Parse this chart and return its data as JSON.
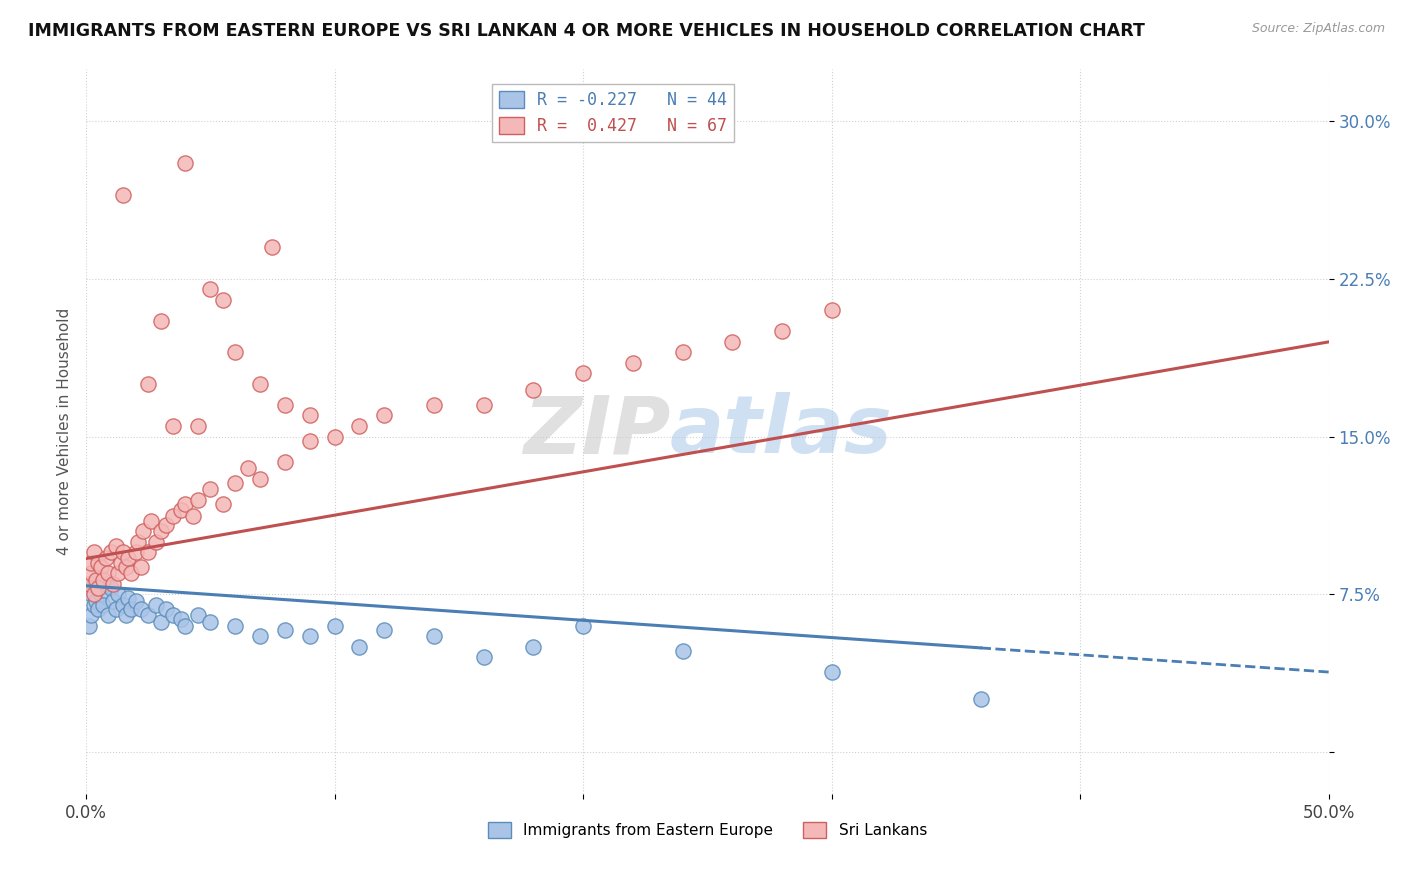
{
  "title": "IMMIGRANTS FROM EASTERN EUROPE VS SRI LANKAN 4 OR MORE VEHICLES IN HOUSEHOLD CORRELATION CHART",
  "source_text": "Source: ZipAtlas.com",
  "ylabel": "4 or more Vehicles in Household",
  "xlim": [
    0.0,
    0.5
  ],
  "ylim": [
    -0.02,
    0.325
  ],
  "xticks": [
    0.0,
    0.1,
    0.2,
    0.3,
    0.4,
    0.5
  ],
  "xticklabels": [
    "0.0%",
    "",
    "",
    "",
    "",
    "50.0%"
  ],
  "yticks": [
    0.0,
    0.075,
    0.15,
    0.225,
    0.3
  ],
  "yticklabels": [
    "",
    "7.5%",
    "15.0%",
    "22.5%",
    "30.0%"
  ],
  "legend_entries": [
    {
      "label": "R = -0.227   N = 44",
      "color": "#6fa8dc"
    },
    {
      "label": "R =  0.427   N = 67",
      "color": "#ea9999"
    }
  ],
  "watermark": "ZIPAtlas",
  "blue_color": "#aac4e8",
  "pink_color": "#f4b8b8",
  "blue_edge_color": "#5b8db8",
  "pink_edge_color": "#d06060",
  "blue_line_color": "#4a7eb5",
  "pink_line_color": "#c05050",
  "blue_scatter_x": [
    0.001,
    0.002,
    0.002,
    0.003,
    0.003,
    0.004,
    0.005,
    0.006,
    0.007,
    0.008,
    0.009,
    0.01,
    0.011,
    0.012,
    0.013,
    0.015,
    0.016,
    0.017,
    0.018,
    0.02,
    0.022,
    0.025,
    0.028,
    0.03,
    0.032,
    0.035,
    0.038,
    0.04,
    0.045,
    0.05,
    0.06,
    0.07,
    0.08,
    0.09,
    0.1,
    0.11,
    0.12,
    0.14,
    0.16,
    0.18,
    0.2,
    0.24,
    0.3,
    0.36
  ],
  "blue_scatter_y": [
    0.06,
    0.075,
    0.065,
    0.08,
    0.07,
    0.072,
    0.068,
    0.075,
    0.07,
    0.08,
    0.065,
    0.078,
    0.072,
    0.068,
    0.075,
    0.07,
    0.065,
    0.073,
    0.068,
    0.072,
    0.068,
    0.065,
    0.07,
    0.062,
    0.068,
    0.065,
    0.063,
    0.06,
    0.065,
    0.062,
    0.06,
    0.055,
    0.058,
    0.055,
    0.06,
    0.05,
    0.058,
    0.055,
    0.045,
    0.05,
    0.06,
    0.048,
    0.038,
    0.025
  ],
  "pink_scatter_x": [
    0.001,
    0.002,
    0.002,
    0.003,
    0.003,
    0.004,
    0.005,
    0.005,
    0.006,
    0.007,
    0.008,
    0.009,
    0.01,
    0.011,
    0.012,
    0.013,
    0.014,
    0.015,
    0.016,
    0.017,
    0.018,
    0.02,
    0.021,
    0.022,
    0.023,
    0.025,
    0.026,
    0.028,
    0.03,
    0.032,
    0.035,
    0.038,
    0.04,
    0.043,
    0.045,
    0.05,
    0.055,
    0.06,
    0.065,
    0.07,
    0.08,
    0.09,
    0.1,
    0.11,
    0.12,
    0.14,
    0.16,
    0.18,
    0.2,
    0.22,
    0.24,
    0.26,
    0.28,
    0.3,
    0.05,
    0.075,
    0.03,
    0.04,
    0.015,
    0.025,
    0.06,
    0.07,
    0.035,
    0.055,
    0.045,
    0.08,
    0.09
  ],
  "pink_scatter_y": [
    0.08,
    0.085,
    0.09,
    0.075,
    0.095,
    0.082,
    0.078,
    0.09,
    0.088,
    0.082,
    0.092,
    0.085,
    0.095,
    0.08,
    0.098,
    0.085,
    0.09,
    0.095,
    0.088,
    0.092,
    0.085,
    0.095,
    0.1,
    0.088,
    0.105,
    0.095,
    0.11,
    0.1,
    0.105,
    0.108,
    0.112,
    0.115,
    0.118,
    0.112,
    0.12,
    0.125,
    0.118,
    0.128,
    0.135,
    0.13,
    0.138,
    0.148,
    0.15,
    0.155,
    0.16,
    0.165,
    0.165,
    0.172,
    0.18,
    0.185,
    0.19,
    0.195,
    0.2,
    0.21,
    0.22,
    0.24,
    0.205,
    0.28,
    0.265,
    0.175,
    0.19,
    0.175,
    0.155,
    0.215,
    0.155,
    0.165,
    0.16
  ],
  "blue_trend_x": [
    0.0,
    0.5
  ],
  "blue_trend_y": [
    0.079,
    0.038
  ],
  "pink_trend_x": [
    0.0,
    0.5
  ],
  "pink_trend_y": [
    0.092,
    0.195
  ]
}
